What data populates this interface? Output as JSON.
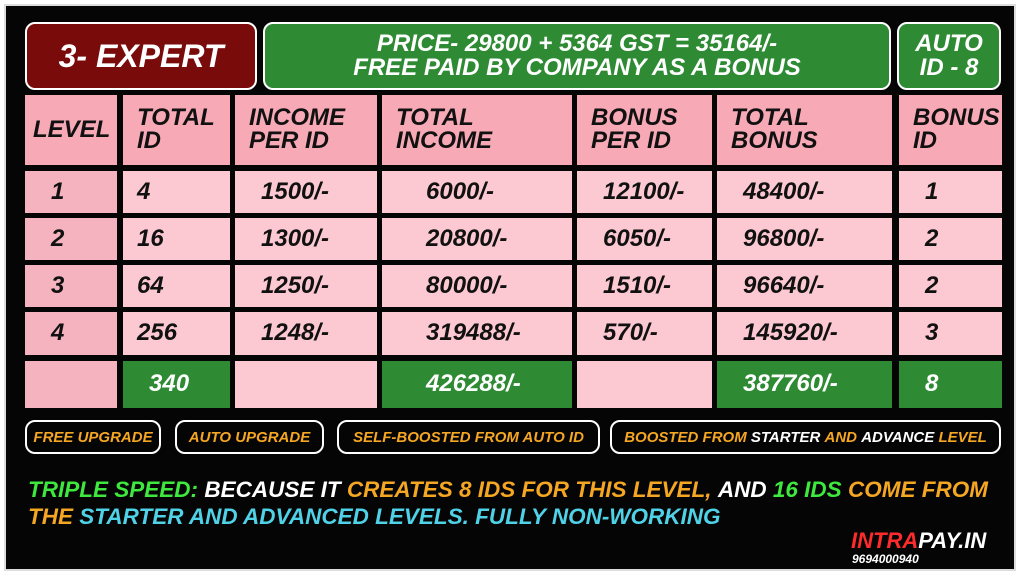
{
  "header": {
    "level": "3- EXPERT",
    "price": [
      "PRICE- 29800 + 5364 GST = 35164/-",
      "FREE PAID BY COMPANY AS A BONUS"
    ],
    "auto": [
      "AUTO",
      "ID - 8"
    ]
  },
  "table": {
    "header": [
      "LEVEL",
      "TOTAL ID",
      "INCOME PER ID",
      "TOTAL INCOME",
      "BONUS PER ID",
      "TOTAL BONUS",
      "BONUS ID"
    ],
    "rows": [
      [
        "1",
        "4",
        "1500/-",
        "6000/-",
        "12100/-",
        "48400/-",
        "1"
      ],
      [
        "2",
        "16",
        "1300/-",
        "20800/-",
        "6050/-",
        "96800/-",
        "2"
      ],
      [
        "3",
        "64",
        "1250/-",
        "80000/-",
        "1510/-",
        "96640/-",
        "2"
      ],
      [
        "4",
        "256",
        "1248/-",
        "319488/-",
        "570/-",
        "145920/-",
        "3"
      ]
    ],
    "total": [
      null,
      "340",
      null,
      "426288/-",
      null,
      "387760/-",
      "8"
    ]
  },
  "badges": [
    [
      {
        "text": "FREE UPGRADE",
        "color": "#f5a623"
      }
    ],
    [
      {
        "text": "AUTO UPGRADE",
        "color": "#f5a623"
      }
    ],
    [
      {
        "text": "SELF-BOOSTED FROM AUTO ID",
        "color": "#f5a623"
      }
    ],
    [
      {
        "text": "BOOSTED FROM",
        "color": "#f5a623"
      },
      {
        "text": "STARTER",
        "color": "#ffffff"
      },
      {
        "text": "AND",
        "color": "#f5a623"
      },
      {
        "text": "ADVANCE",
        "color": "#ffffff"
      },
      {
        "text": "LEVEL",
        "color": "#f5a623"
      }
    ]
  ],
  "note": [
    {
      "text": "TRIPLE SPEED:",
      "color": "#3ee83e"
    },
    {
      "text": "BECAUSE IT",
      "color": "#ffffff"
    },
    {
      "text": "CREATES 8 IDS FOR THIS LEVEL,",
      "color": "#f5a623"
    },
    {
      "text": "AND",
      "color": "#ffffff"
    },
    {
      "text": "16 IDS",
      "color": "#3ee83e"
    },
    {
      "text": "COME FROM THE",
      "color": "#f5a623"
    },
    {
      "text": "STARTER AND ADVANCED LEVELS. FULLY NON-WORKING",
      "color": "#4fd2e8"
    }
  ],
  "logo": {
    "brand": [
      {
        "text": "INTRA",
        "color": "#ff2a2a"
      },
      {
        "text": "PAY.IN",
        "color": "#ffffff"
      }
    ],
    "phone": "9694000940"
  }
}
